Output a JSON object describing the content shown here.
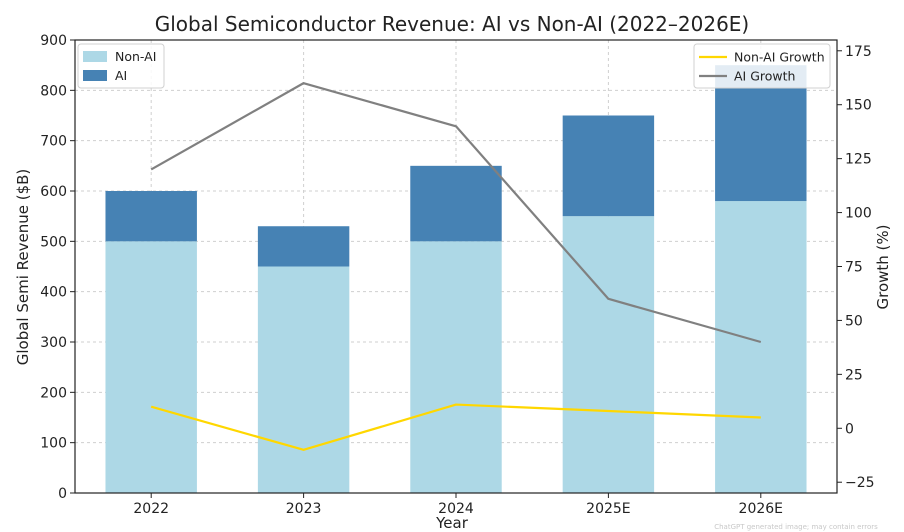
{
  "chart_data": {
    "type": "bar",
    "title": "Global Semiconductor Revenue: AI vs Non-AI (2022–2026E)",
    "xlabel": "Year",
    "ylabel": "Global Semi Revenue ($B)",
    "y2label": "Growth (%)",
    "categories": [
      "2022",
      "2023",
      "2024",
      "2025E",
      "2026E"
    ],
    "ylim": [
      0,
      900
    ],
    "yticks": [
      0,
      100,
      200,
      300,
      400,
      500,
      600,
      700,
      800,
      900
    ],
    "y2lim": [
      -30,
      180
    ],
    "y2ticks": [
      -25,
      0,
      25,
      50,
      75,
      100,
      125,
      150,
      175
    ],
    "stacked": true,
    "series": [
      {
        "name": "Non-AI",
        "type": "bar",
        "axis": "left",
        "color": "#add8e6",
        "values": [
          500,
          450,
          500,
          550,
          580
        ]
      },
      {
        "name": "AI",
        "type": "bar",
        "axis": "left",
        "color": "#4682b4",
        "values": [
          100,
          80,
          150,
          200,
          270
        ]
      },
      {
        "name": "Non-AI Growth",
        "type": "line",
        "axis": "right",
        "color": "#ffd700",
        "values": [
          10,
          -10,
          11,
          8,
          5
        ]
      },
      {
        "name": "AI Growth",
        "type": "line",
        "axis": "right",
        "color": "#808080",
        "values": [
          120,
          160,
          140,
          60,
          40
        ]
      }
    ],
    "grid": true,
    "legend_bars_position": "top-left",
    "legend_lines_position": "top-right",
    "watermark": "ChatGPT generated image; may contain errors"
  }
}
